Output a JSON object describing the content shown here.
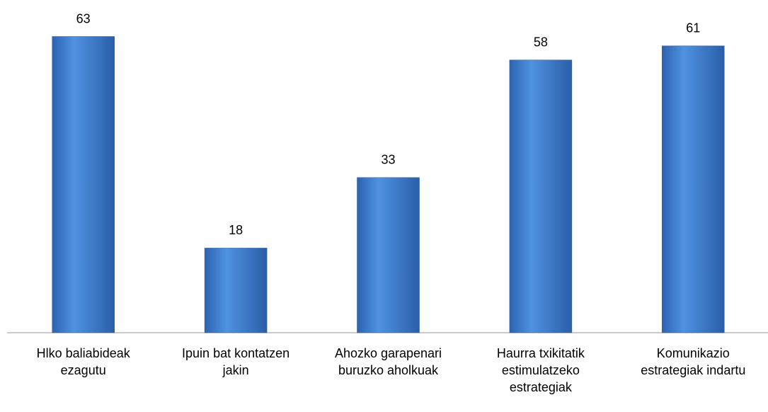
{
  "chart_data": {
    "type": "bar",
    "categories": [
      "Hlko baliabideak ezagutu",
      "Ipuin bat kontatzen jakin",
      "Ahozko garapenari buruzko aholkuak",
      "Haurra txikitatik estimulatzeko estrategiak",
      "Komunikazio estrategiak indartu"
    ],
    "values": [
      63,
      18,
      33,
      58,
      61
    ],
    "color": "#3a7bd0",
    "ylim": [
      0,
      70
    ]
  }
}
